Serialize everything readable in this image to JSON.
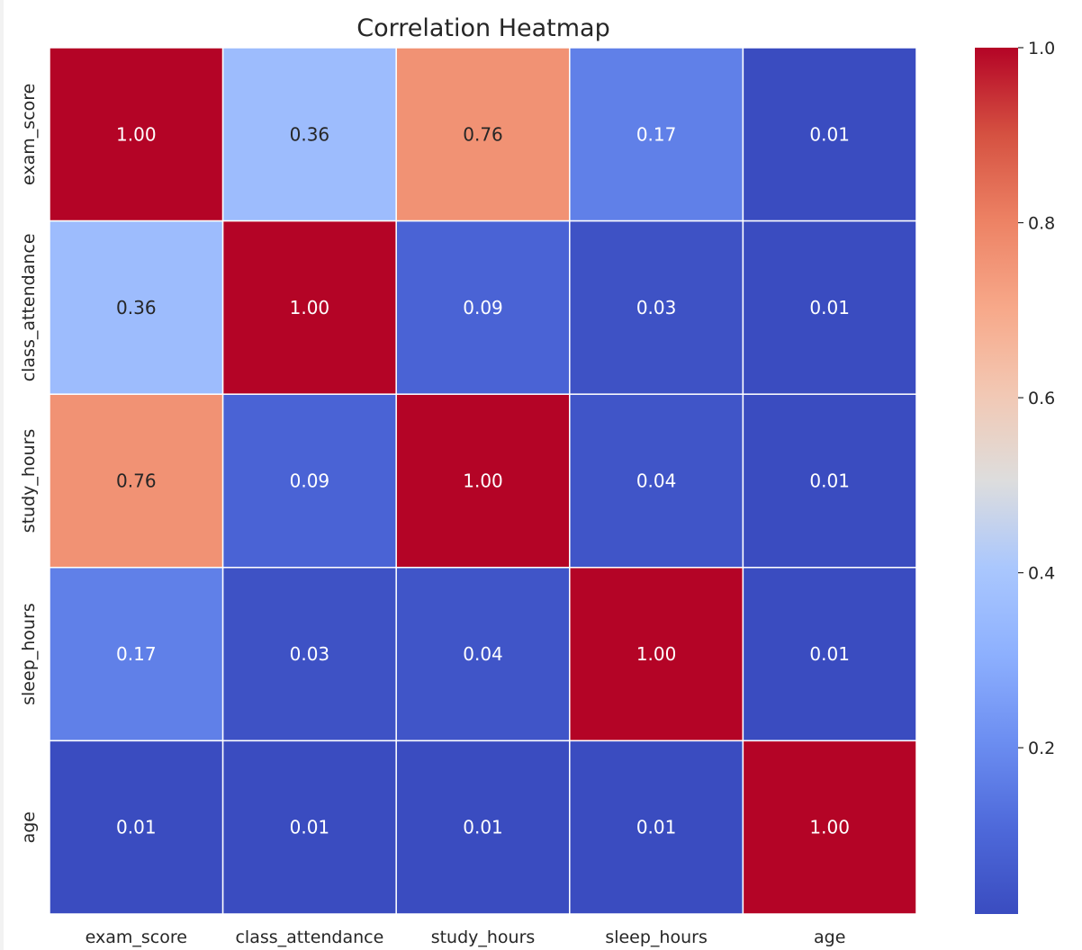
{
  "chart_data": {
    "type": "heatmap",
    "title": "Correlation Heatmap",
    "xlabel": "",
    "ylabel": "",
    "x_categories": [
      "exam_score",
      "class_attendance",
      "study_hours",
      "sleep_hours",
      "age"
    ],
    "y_categories": [
      "exam_score",
      "class_attendance",
      "study_hours",
      "sleep_hours",
      "age"
    ],
    "values": [
      [
        1.0,
        0.36,
        0.76,
        0.17,
        0.01
      ],
      [
        0.36,
        1.0,
        0.09,
        0.03,
        0.01
      ],
      [
        0.76,
        0.09,
        1.0,
        0.04,
        0.01
      ],
      [
        0.17,
        0.03,
        0.04,
        1.0,
        0.01
      ],
      [
        0.01,
        0.01,
        0.01,
        0.01,
        1.0
      ]
    ],
    "annotation_format": "0.00",
    "colormap": "coolwarm",
    "color_range": [
      0.01,
      1.0
    ],
    "colorbar": {
      "ticks": [
        0.2,
        0.4,
        0.6,
        0.8,
        1.0
      ],
      "tick_labels": [
        "0.2",
        "0.4",
        "0.6",
        "0.8",
        "1.0"
      ]
    },
    "cell_line_color": "#ffffff",
    "grid": false,
    "legend": "colorbar-right"
  }
}
